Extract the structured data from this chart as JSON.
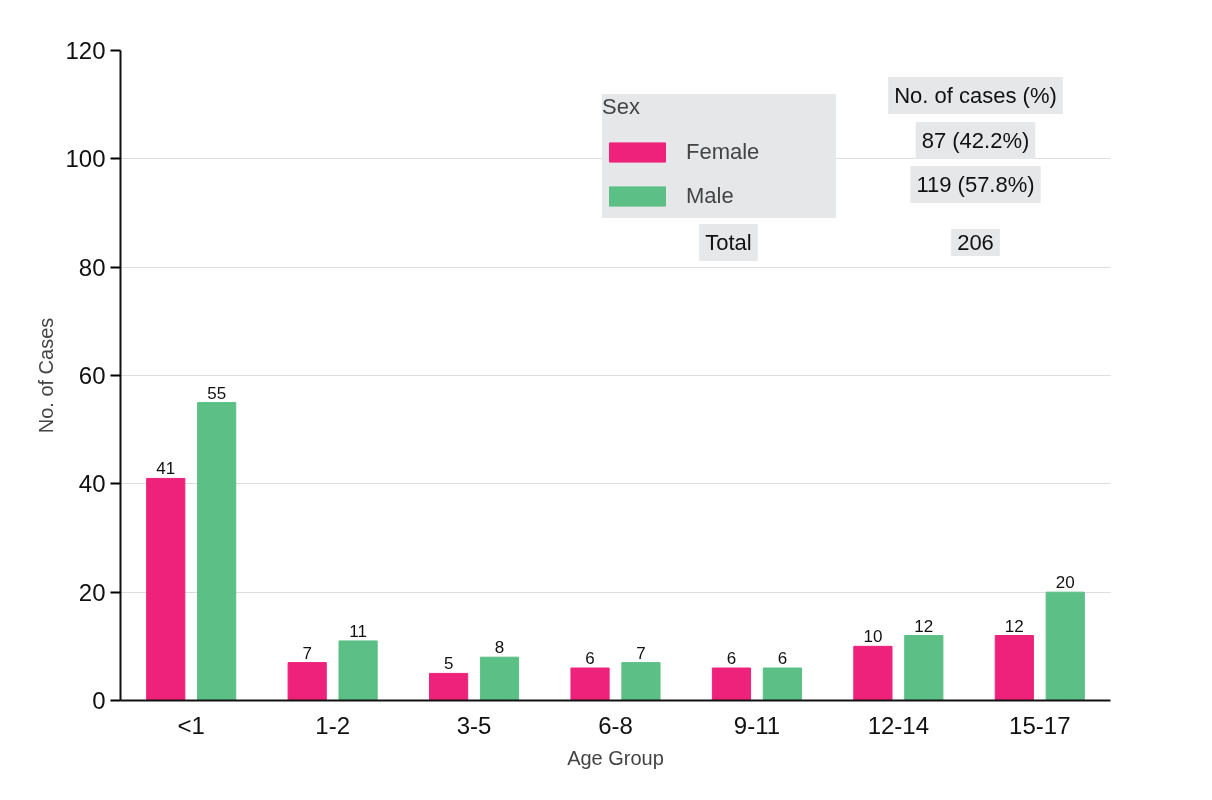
{
  "chart_data": {
    "type": "bar",
    "xlabel": "Age Group",
    "ylabel": "No. of Cases",
    "categories": [
      "<1",
      "1-2",
      "3-5",
      "6-8",
      "9-11",
      "12-14",
      "15-17"
    ],
    "series": [
      {
        "name": "Female",
        "color": "#ee227b",
        "values": [
          41,
          7,
          5,
          6,
          6,
          10,
          12
        ]
      },
      {
        "name": "Male",
        "color": "#5bbf86",
        "values": [
          55,
          11,
          8,
          7,
          6,
          12,
          20
        ]
      }
    ],
    "ylim": [
      0,
      120
    ],
    "yticks": [
      0,
      20,
      40,
      60,
      80,
      100,
      120
    ],
    "grid": "y",
    "legend": "top right",
    "data_labels": true,
    "legend_title": "Sex",
    "annotations": [
      "No. of cases (%)",
      "87 (42.2%)",
      "119 (57.8%)",
      "Total",
      "206"
    ]
  }
}
